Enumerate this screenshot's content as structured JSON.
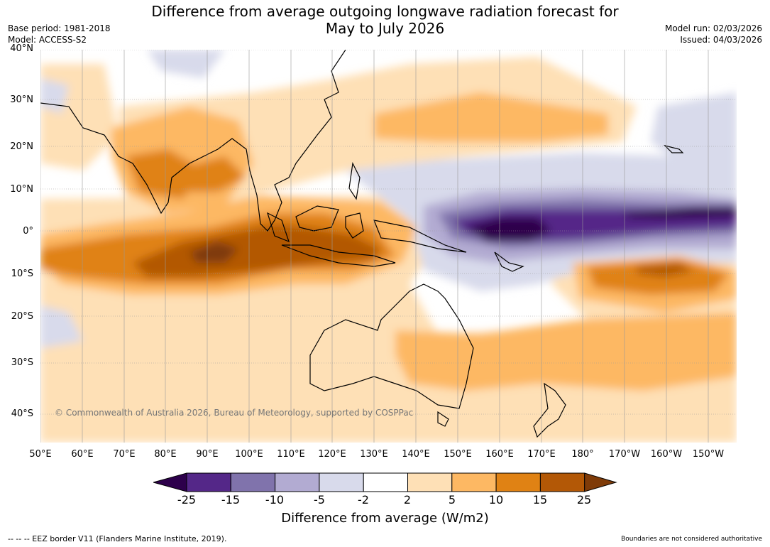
{
  "header": {
    "title_line1": "Difference from average outgoing longwave radiation forecast for",
    "title_line2": "May to July 2026",
    "base_period": "Base period: 1981-2018",
    "model": "Model: ACCESS-S2",
    "model_run": "Model run: 02/03/2026",
    "issued": "Issued: 04/03/2026"
  },
  "map": {
    "lat_labels": [
      "40°N",
      "30°N",
      "20°N",
      "10°N",
      "0°",
      "10°S",
      "20°S",
      "30°S",
      "40°S"
    ],
    "lon_labels": [
      "50°E",
      "60°E",
      "70°E",
      "80°E",
      "90°E",
      "100°E",
      "110°E",
      "120°E",
      "130°E",
      "140°E",
      "150°E",
      "160°E",
      "170°E",
      "180°",
      "170°W",
      "160°W",
      "150°W"
    ],
    "copyright": "© Commonwealth of Australia 2026, Bureau of Meteorology, supported by COSPPac"
  },
  "legend": {
    "ticks": [
      "-25",
      "-15",
      "-10",
      "-5",
      "-2",
      "2",
      "5",
      "10",
      "15",
      "25"
    ],
    "colors": [
      "#2d004b",
      "#542788",
      "#8073ac",
      "#b2abd2",
      "#d8daeb",
      "#ffffff",
      "#fee0b6",
      "#fdb863",
      "#e08214",
      "#b35806",
      "#7f3b08"
    ],
    "label": "Difference from average (W/m2)"
  },
  "footer": {
    "eez": "--  --  -- EEZ border V11 (Flanders Marine Institute, 2019).",
    "boundaries": "Boundaries are not considered authoritative"
  }
}
